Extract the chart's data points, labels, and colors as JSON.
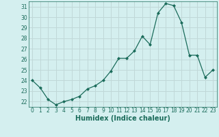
{
  "x": [
    0,
    1,
    2,
    3,
    4,
    5,
    6,
    7,
    8,
    9,
    10,
    11,
    12,
    13,
    14,
    15,
    16,
    17,
    18,
    19,
    20,
    21,
    22,
    23
  ],
  "y": [
    24.0,
    23.3,
    22.2,
    21.7,
    22.0,
    22.2,
    22.5,
    23.2,
    23.5,
    24.0,
    24.9,
    26.1,
    26.1,
    26.8,
    28.2,
    27.4,
    30.4,
    31.3,
    31.1,
    29.5,
    26.4,
    26.4,
    24.3,
    25.0
  ],
  "ylim": [
    21.5,
    31.5
  ],
  "xlim": [
    -0.5,
    23.5
  ],
  "yticks": [
    22,
    23,
    24,
    25,
    26,
    27,
    28,
    29,
    30,
    31
  ],
  "xticks": [
    0,
    1,
    2,
    3,
    4,
    5,
    6,
    7,
    8,
    9,
    10,
    11,
    12,
    13,
    14,
    15,
    16,
    17,
    18,
    19,
    20,
    21,
    22,
    23
  ],
  "xlabel": "Humidex (Indice chaleur)",
  "line_color": "#1a6b5a",
  "marker": "D",
  "marker_size": 2.0,
  "bg_color": "#d4efef",
  "grid_color": "#c0d8d8",
  "tick_fontsize": 5.5,
  "xlabel_fontsize": 7.0
}
